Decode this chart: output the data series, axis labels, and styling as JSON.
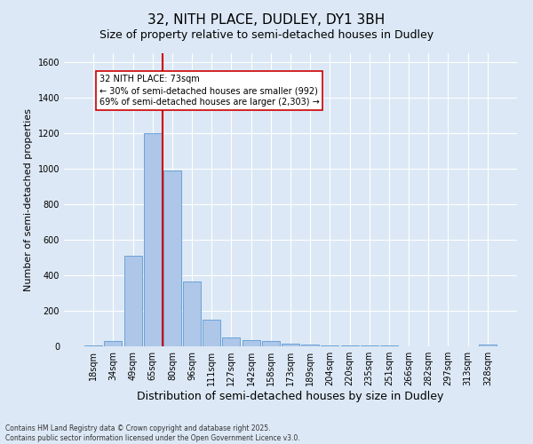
{
  "title": "32, NITH PLACE, DUDLEY, DY1 3BH",
  "subtitle": "Size of property relative to semi-detached houses in Dudley",
  "xlabel": "Distribution of semi-detached houses by size in Dudley",
  "ylabel": "Number of semi-detached properties",
  "categories": [
    "18sqm",
    "34sqm",
    "49sqm",
    "65sqm",
    "80sqm",
    "96sqm",
    "111sqm",
    "127sqm",
    "142sqm",
    "158sqm",
    "173sqm",
    "189sqm",
    "204sqm",
    "220sqm",
    "235sqm",
    "251sqm",
    "266sqm",
    "282sqm",
    "297sqm",
    "313sqm",
    "328sqm"
  ],
  "values": [
    5,
    30,
    510,
    1200,
    990,
    365,
    150,
    50,
    35,
    30,
    15,
    10,
    5,
    5,
    5,
    5,
    2,
    2,
    2,
    2,
    10
  ],
  "bar_color": "#aec6e8",
  "bar_edge_color": "#5b9bd5",
  "vline_color": "#cc0000",
  "vline_pos": 3.5,
  "annotation_text": "32 NITH PLACE: 73sqm\n← 30% of semi-detached houses are smaller (992)\n69% of semi-detached houses are larger (2,303) →",
  "annotation_box_color": "#ffffff",
  "annotation_box_edge_color": "#cc0000",
  "ylim": [
    0,
    1650
  ],
  "yticks": [
    0,
    200,
    400,
    600,
    800,
    1000,
    1200,
    1400,
    1600
  ],
  "footnote1": "Contains HM Land Registry data © Crown copyright and database right 2025.",
  "footnote2": "Contains public sector information licensed under the Open Government Licence v3.0.",
  "bg_color": "#dce8f5",
  "title_fontsize": 11,
  "subtitle_fontsize": 9,
  "ylabel_fontsize": 8,
  "xlabel_fontsize": 9,
  "tick_fontsize": 7,
  "annot_fontsize": 7
}
